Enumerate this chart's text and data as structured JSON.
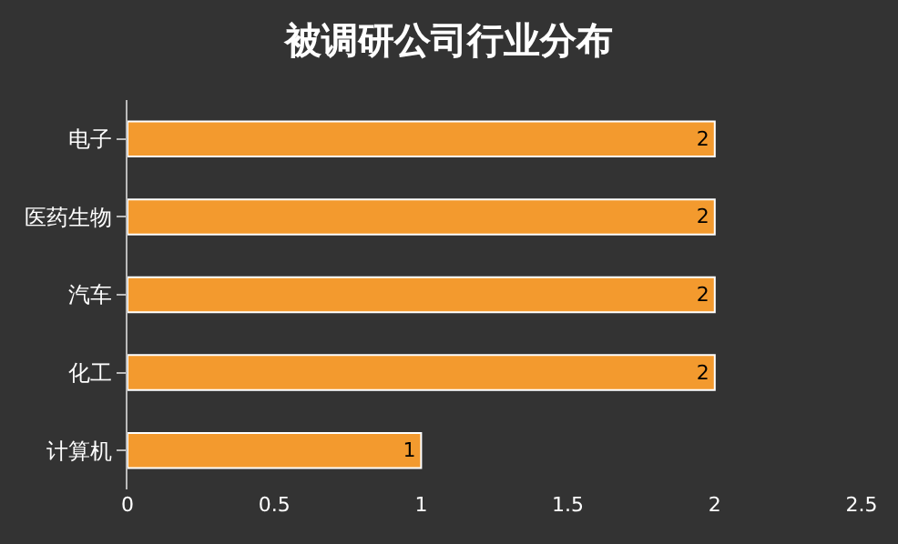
{
  "chart_data": {
    "type": "bar",
    "orientation": "horizontal",
    "title": "被调研公司行业分布",
    "categories": [
      "电子",
      "医药生物",
      "汽车",
      "化工",
      "计算机"
    ],
    "values": [
      2,
      2,
      2,
      2,
      1
    ],
    "color": "#f39a2e",
    "xlim": [
      0,
      2.5
    ],
    "xticks": [
      0,
      0.5,
      1,
      1.5,
      2,
      2.5
    ],
    "data_labels": true
  }
}
